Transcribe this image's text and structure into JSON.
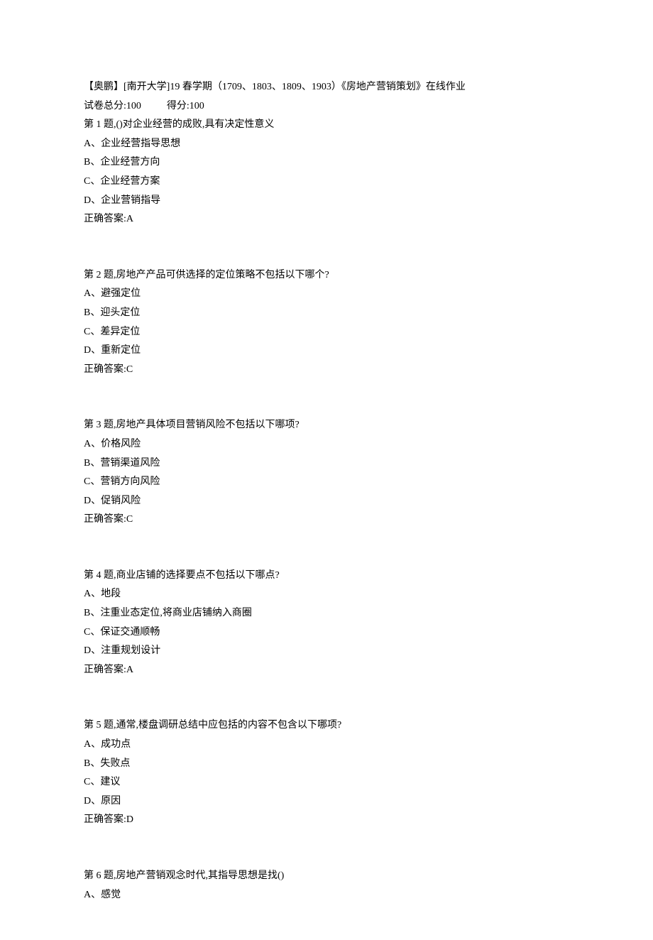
{
  "header": {
    "title": "【奥鹏】[南开大学]19 春学期（1709、1803、1809、1903）《房地产营销策划》在线作业",
    "total_score_label": "试卷总分:100",
    "obtained_score_label": "得分:100"
  },
  "questions": [
    {
      "number": "第 1 题",
      "text": ",()对企业经营的成败,具有决定性意义",
      "options": [
        "A、企业经营指导思想",
        "B、企业经营方向",
        "C、企业经营方案",
        "D、企业营销指导"
      ],
      "answer": "正确答案:A"
    },
    {
      "number": "第 2 题",
      "text": ",房地产产品可供选择的定位策略不包括以下哪个?",
      "options": [
        "A、避强定位",
        "B、迎头定位",
        "C、差异定位",
        "D、重新定位"
      ],
      "answer": "正确答案:C"
    },
    {
      "number": "第 3 题",
      "text": ",房地产具体项目营销风险不包括以下哪项?",
      "options": [
        "A、价格风险",
        "B、营销渠道风险",
        "C、营销方向风险",
        "D、促销风险"
      ],
      "answer": "正确答案:C"
    },
    {
      "number": "第 4 题",
      "text": ",商业店铺的选择要点不包括以下哪点?",
      "options": [
        "A、地段",
        "B、注重业态定位,将商业店铺纳入商圈",
        "C、保证交通顺畅",
        "D、注重规划设计"
      ],
      "answer": "正确答案:A"
    },
    {
      "number": "第 5 题",
      "text": ",通常,楼盘调研总结中应包括的内容不包含以下哪项?",
      "options": [
        "A、成功点",
        "B、失败点",
        "C、建议",
        "D、原因"
      ],
      "answer": "正确答案:D"
    },
    {
      "number": "第 6 题",
      "text": ",房地产营销观念时代,其指导思想是找()",
      "options": [
        "A、感觉"
      ],
      "answer": null
    }
  ]
}
